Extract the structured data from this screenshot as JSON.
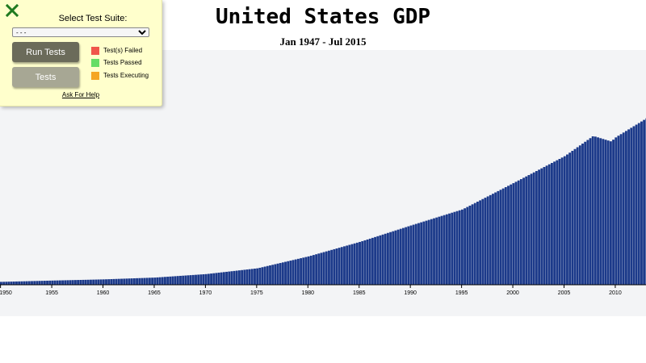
{
  "test_panel": {
    "suite_label": "Select Test Suite:",
    "suite_selected": "- - -",
    "run_tests_label": "Run Tests",
    "tests_label": "Tests",
    "help_label": "Ask For Help",
    "close_icon": "close-x-icon",
    "legend": [
      {
        "label": "Test(s) Failed",
        "color": "#f0564a"
      },
      {
        "label": "Tests Passed",
        "color": "#66dd66"
      },
      {
        "label": "Tests Executing",
        "color": "#f5a623"
      }
    ]
  },
  "chart_data": {
    "type": "bar",
    "title": "United States GDP",
    "subtitle": "Jan 1947 - Jul 2015",
    "xlabel": "",
    "ylabel": "",
    "bar_color": "#1c3a8a",
    "background_color": "#f3f4f6",
    "grid": false,
    "x_tick_labels": [
      "1950",
      "1955",
      "1960",
      "1965",
      "1970",
      "1975",
      "1980",
      "1985",
      "1990",
      "1995",
      "2000",
      "2005",
      "2010"
    ],
    "x_range": [
      1949.95,
      2013.0
    ],
    "y_range": [
      0,
      18500
    ],
    "frequency": "quarterly",
    "anchor_points": [
      {
        "x": 1950,
        "y": 290
      },
      {
        "x": 1955,
        "y": 420
      },
      {
        "x": 1960,
        "y": 540
      },
      {
        "x": 1965,
        "y": 720
      },
      {
        "x": 1970,
        "y": 1070
      },
      {
        "x": 1975,
        "y": 1650
      },
      {
        "x": 1980,
        "y": 2850
      },
      {
        "x": 1985,
        "y": 4300
      },
      {
        "x": 1990,
        "y": 5950
      },
      {
        "x": 1995,
        "y": 7550
      },
      {
        "x": 2000,
        "y": 10200
      },
      {
        "x": 2005,
        "y": 12900
      },
      {
        "x": 2007.75,
        "y": 14900
      },
      {
        "x": 2009.5,
        "y": 14350
      },
      {
        "x": 2010,
        "y": 14800
      },
      {
        "x": 2013,
        "y": 16700
      }
    ]
  }
}
